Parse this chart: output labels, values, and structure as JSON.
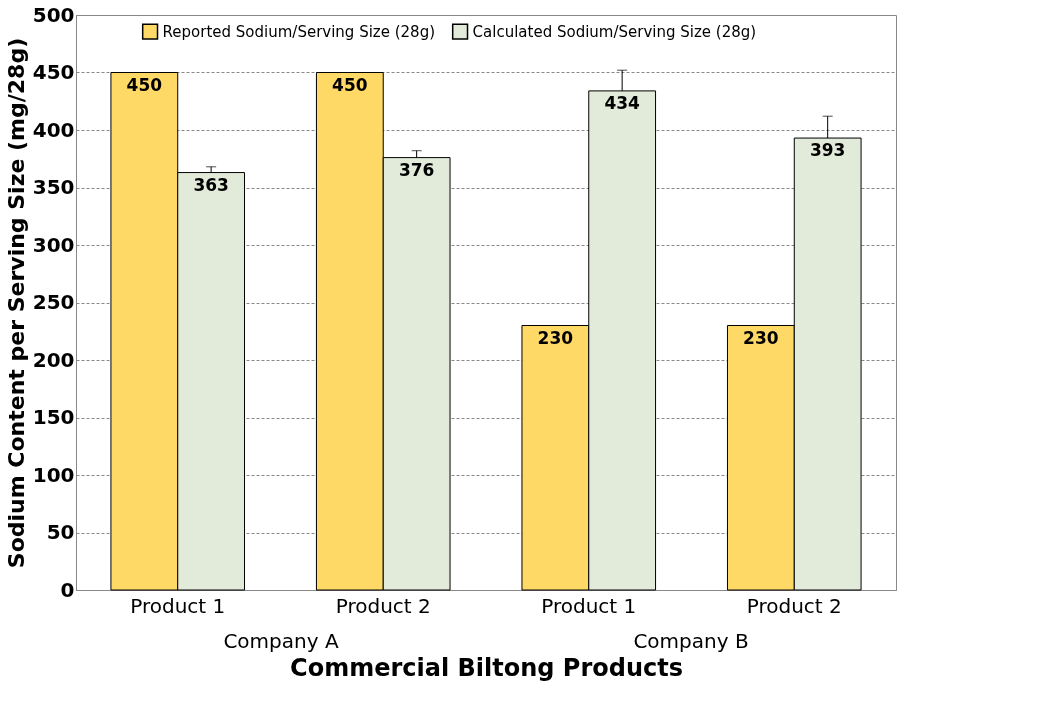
{
  "chart_data": {
    "type": "bar",
    "xlabel": "Commercial Biltong Products",
    "ylabel": "Sodium Content per Serving Size (mg/28g)",
    "categories": [
      "Product 1",
      "Product 2",
      "Product 1",
      "Product 2"
    ],
    "series": [
      {
        "name": "Reported Sodium/Serving Size (28g)",
        "color": "#ffd966",
        "values": [
          450,
          450,
          230,
          230
        ]
      },
      {
        "name": "Calculated Sodium/Serving Size (28g)",
        "color": "#e2ead9",
        "values": [
          363,
          376,
          434,
          393
        ],
        "errors": [
          [
            363,
            368
          ],
          [
            376,
            382
          ],
          [
            434,
            452
          ],
          [
            393,
            412
          ]
        ]
      }
    ],
    "ylim": [
      0,
      500
    ],
    "yticks": [
      0,
      50,
      100,
      150,
      200,
      250,
      300,
      350,
      400,
      450,
      500
    ],
    "grid": "y",
    "legend": "top",
    "data_labels": true,
    "annotations": [
      "Company A",
      "Company B"
    ]
  }
}
